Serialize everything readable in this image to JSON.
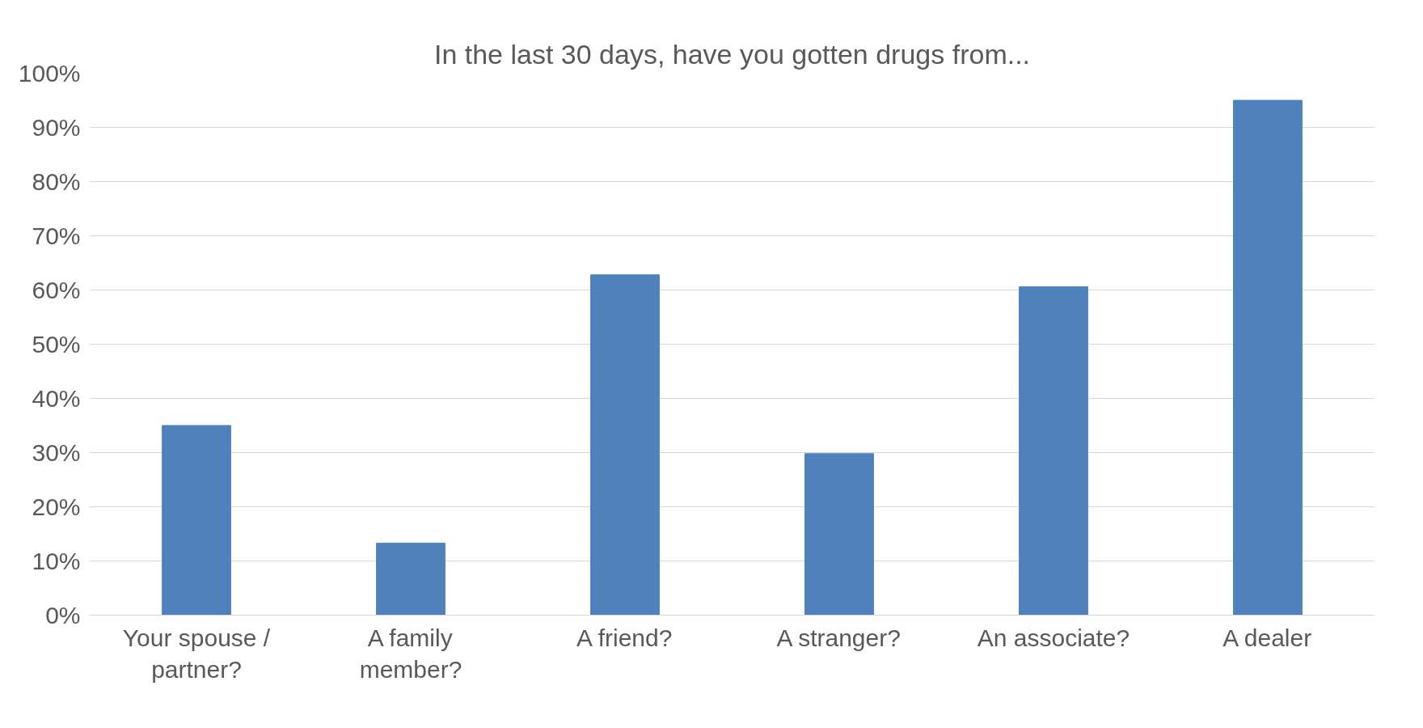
{
  "chart_data": {
    "type": "bar",
    "title": "In the last 30 days, have you gotten drugs from...",
    "categories": [
      "Your spouse / partner?",
      "A family member?",
      "A friend?",
      "A stranger?",
      "An associate?",
      "A dealer"
    ],
    "values": [
      35,
      13.3,
      62.8,
      29.8,
      60.6,
      95
    ],
    "color": "#4f81bd",
    "ylim": [
      0,
      100
    ],
    "yticks": [
      {
        "value": 0,
        "label": "0%"
      },
      {
        "value": 10,
        "label": "10%"
      },
      {
        "value": 20,
        "label": "20%"
      },
      {
        "value": 30,
        "label": "30%"
      },
      {
        "value": 40,
        "label": "40%"
      },
      {
        "value": 50,
        "label": "50%"
      },
      {
        "value": 60,
        "label": "60%"
      },
      {
        "value": 70,
        "label": "70%"
      },
      {
        "value": 80,
        "label": "80%"
      },
      {
        "value": 90,
        "label": "90%"
      },
      {
        "value": 100,
        "label": "100%"
      }
    ],
    "grid": "y"
  }
}
